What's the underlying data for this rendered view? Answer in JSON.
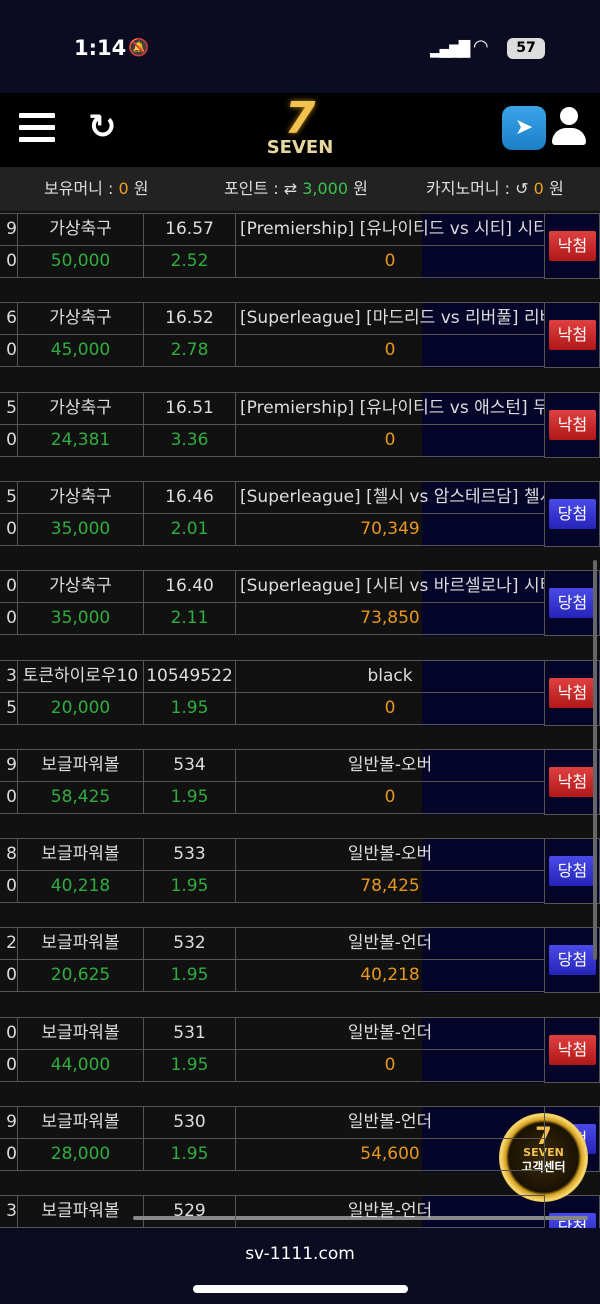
{
  "status_bar": {
    "time": "1:14",
    "battery": "57"
  },
  "header": {
    "logo": "SEVEN"
  },
  "info": {
    "money_label": "보유머니 :",
    "money": "0",
    "point_label": "포인트 :",
    "point": "3,000",
    "casino_label": "카지노머니 :",
    "casino": "0",
    "unit": "원"
  },
  "bets": [
    {
      "id_top": "9",
      "id_bot": "0",
      "game": "가상축구",
      "round": "16.57",
      "amount": "50,000",
      "odds": "2.52",
      "detail": "[Premiership] [유나이티드 vs 시티] 시티",
      "payout": "0",
      "result": "낙첨",
      "status": "lose"
    },
    {
      "id_top": "6",
      "id_bot": "0",
      "game": "가상축구",
      "round": "16.52",
      "amount": "45,000",
      "odds": "2.78",
      "detail": "[Superleague] [마드리드 vs 리버풀] 리버",
      "payout": "0",
      "result": "낙첨",
      "status": "lose"
    },
    {
      "id_top": "5",
      "id_bot": "0",
      "game": "가상축구",
      "round": "16.51",
      "amount": "24,381",
      "odds": "3.36",
      "detail": "[Premiership] [유나이티드 vs 애스턴] 무",
      "payout": "0",
      "result": "낙첨",
      "status": "lose"
    },
    {
      "id_top": "5",
      "id_bot": "0",
      "game": "가상축구",
      "round": "16.46",
      "amount": "35,000",
      "odds": "2.01",
      "detail": "[Superleague] [첼시 vs 암스테르담] 첼시",
      "payout": "70,349",
      "result": "당첨",
      "status": "win"
    },
    {
      "id_top": "0",
      "id_bot": "0",
      "game": "가상축구",
      "round": "16.40",
      "amount": "35,000",
      "odds": "2.11",
      "detail": "[Superleague] [시티 vs 바르셀로나] 시티",
      "payout": "73,850",
      "result": "당첨",
      "status": "win"
    },
    {
      "id_top": "3",
      "id_bot": "5",
      "game": "토큰하이로우10",
      "round": "10549522",
      "amount": "20,000",
      "odds": "1.95",
      "detail": "black",
      "payout": "0",
      "result": "낙첨",
      "status": "lose"
    },
    {
      "id_top": "9",
      "id_bot": "0",
      "game": "보글파워볼",
      "round": "534",
      "amount": "58,425",
      "odds": "1.95",
      "detail": "일반볼-오버",
      "payout": "0",
      "result": "낙첨",
      "status": "lose"
    },
    {
      "id_top": "8",
      "id_bot": "0",
      "game": "보글파워볼",
      "round": "533",
      "amount": "40,218",
      "odds": "1.95",
      "detail": "일반볼-오버",
      "payout": "78,425",
      "result": "당첨",
      "status": "win"
    },
    {
      "id_top": "2",
      "id_bot": "0",
      "game": "보글파워볼",
      "round": "532",
      "amount": "20,625",
      "odds": "1.95",
      "detail": "일반볼-언더",
      "payout": "40,218",
      "result": "당첨",
      "status": "win"
    },
    {
      "id_top": "0",
      "id_bot": "0",
      "game": "보글파워볼",
      "round": "531",
      "amount": "44,000",
      "odds": "1.95",
      "detail": "일반볼-언더",
      "payout": "0",
      "result": "낙첨",
      "status": "lose"
    },
    {
      "id_top": "9",
      "id_bot": "0",
      "game": "보글파워볼",
      "round": "530",
      "amount": "28,000",
      "odds": "1.95",
      "detail": "일반볼-언더",
      "payout": "54,600",
      "result": "당첨",
      "status": "win"
    },
    {
      "id_top": "3",
      "id_bot": "",
      "game": "보글파워볼",
      "round": "529",
      "amount": "",
      "odds": "",
      "detail": "일반볼-언더",
      "payout": "",
      "result": "당첨",
      "status": "win"
    }
  ],
  "support": {
    "label": "고객센터",
    "logo": "SEVEN"
  },
  "browser": {
    "url": "sv-1111.com"
  }
}
